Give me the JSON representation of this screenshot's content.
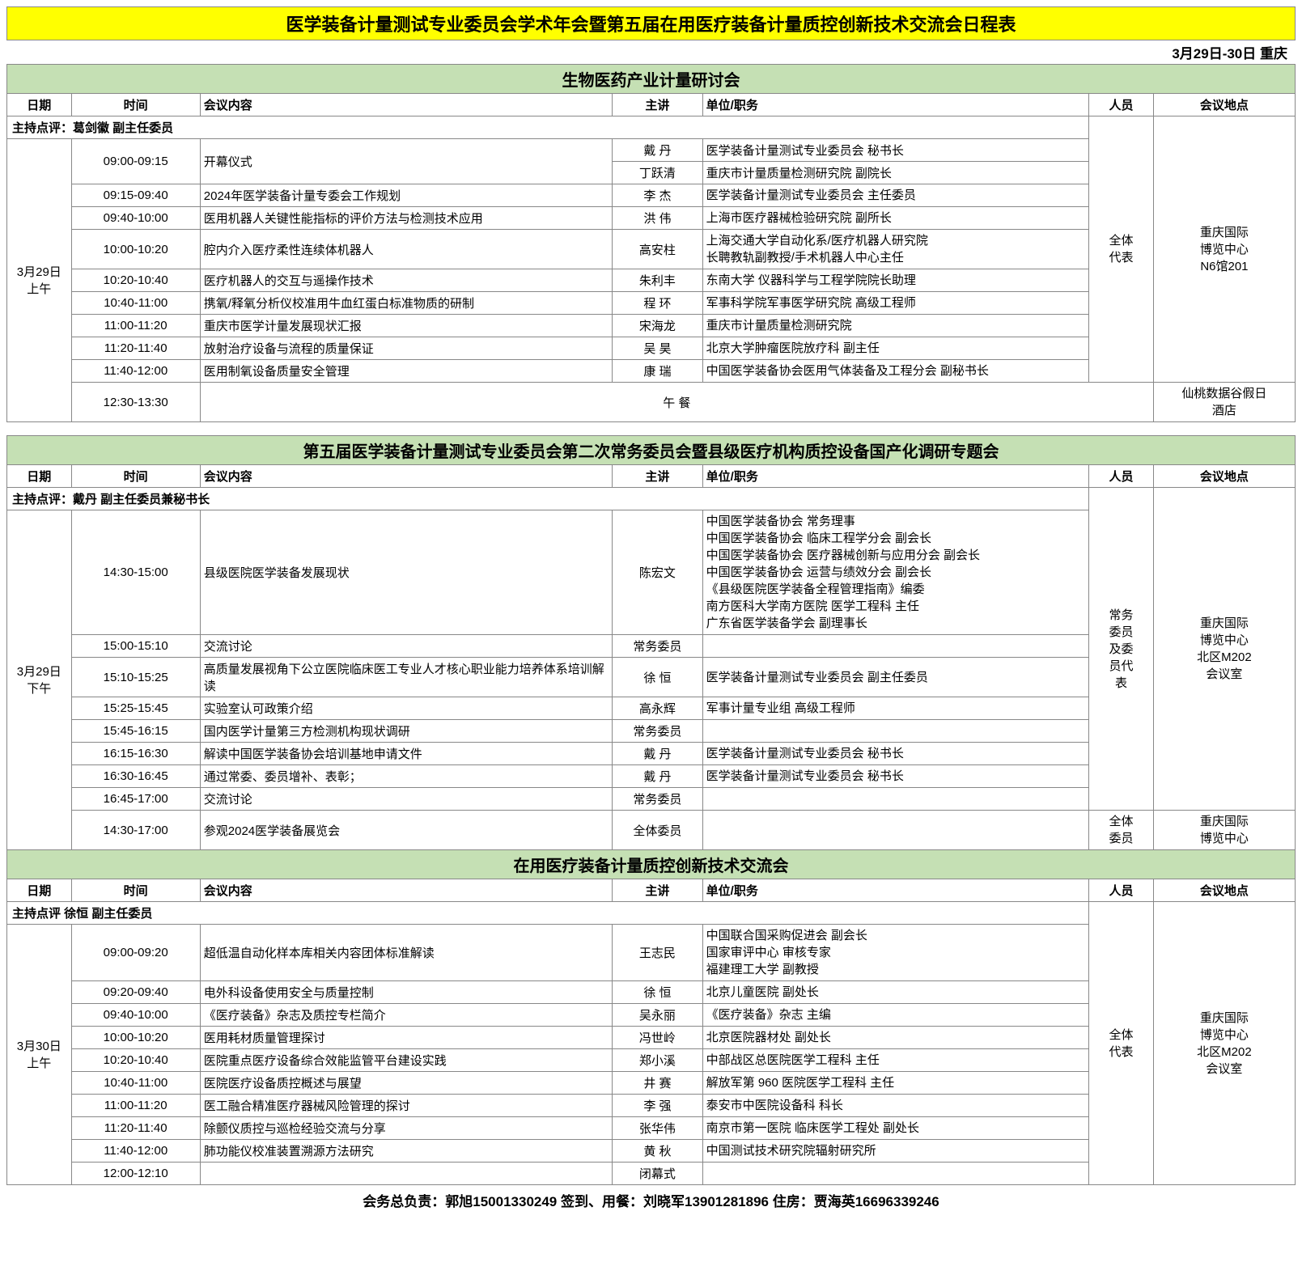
{
  "colors": {
    "title_bg": "#ffff00",
    "section_bg": "#c5e0b4",
    "border": "#888888",
    "text": "#000000",
    "bg": "#ffffff"
  },
  "typography": {
    "title_fontsize_pt": 17,
    "section_fontsize_pt": 15,
    "body_fontsize_pt": 11,
    "footer_fontsize_pt": 13
  },
  "main_title": "医学装备计量测试专业委员会学术年会暨第五届在用医疗装备计量质控创新技术交流会日程表",
  "date_location": "3月29日-30日  重庆",
  "headers": {
    "date": "日期",
    "time": "时间",
    "topic": "会议内容",
    "speaker": "主讲",
    "org": "单位/职务",
    "audience": "人员",
    "venue": "会议地点"
  },
  "block1": {
    "section": "生物医药产业计量研讨会",
    "host": "主持点评：葛剑徽  副主任委员",
    "date_label": "3月29日\n上午",
    "audience": "全体\n代表",
    "venue": "重庆国际\n博览中心\nN6馆201",
    "rows": [
      {
        "time": "09:00-09:15",
        "topic": "开幕仪式",
        "speaker": "戴  丹",
        "org": "医学装备计量测试专业委员会  秘书长",
        "opening": true
      },
      {
        "time": "",
        "topic": "",
        "speaker": "丁跃清",
        "org": "重庆市计量质量检测研究院  副院长"
      },
      {
        "time": "09:15-09:40",
        "topic": "2024年医学装备计量专委会工作规划",
        "speaker": "李  杰",
        "org": "医学装备计量测试专业委员会  主任委员"
      },
      {
        "time": "09:40-10:00",
        "topic": "医用机器人关键性能指标的评价方法与检测技术应用",
        "speaker": "洪  伟",
        "org": "上海市医疗器械检验研究院  副所长"
      },
      {
        "time": "10:00-10:20",
        "topic": "腔内介入医疗柔性连续体机器人",
        "speaker": "高安柱",
        "org": "上海交通大学自动化系/医疗机器人研究院\n长聘教轨副教授/手术机器人中心主任"
      },
      {
        "time": "10:20-10:40",
        "topic": "医疗机器人的交互与遥操作技术",
        "speaker": "朱利丰",
        "org": "东南大学  仪器科学与工程学院院长助理"
      },
      {
        "time": "10:40-11:00",
        "topic": "携氧/释氧分析仪校准用牛血红蛋白标准物质的研制",
        "speaker": "程  环",
        "org": "军事科学院军事医学研究院  高级工程师"
      },
      {
        "time": "11:00-11:20",
        "topic": "重庆市医学计量发展现状汇报",
        "speaker": "宋海龙",
        "org": "重庆市计量质量检测研究院"
      },
      {
        "time": "11:20-11:40",
        "topic": "放射治疗设备与流程的质量保证",
        "speaker": "吴  昊",
        "org": "北京大学肿瘤医院放疗科  副主任"
      },
      {
        "time": "11:40-12:00",
        "topic": "医用制氧设备质量安全管理",
        "speaker": "康  瑞",
        "org": "中国医学装备协会医用气体装备及工程分会  副秘书长"
      }
    ],
    "lunch": {
      "time": "12:30-13:30",
      "label": "午  餐",
      "venue": "仙桃数据谷假日\n酒店"
    }
  },
  "block2": {
    "section": "第五届医学装备计量测试专业委员会第二次常务委员会暨县级医疗机构质控设备国产化调研专题会",
    "host": "主持点评：戴丹  副主任委员兼秘书长",
    "date_label": "3月29日\n下午",
    "audience": "常务\n委员\n及委\n员代\n表",
    "venue": "重庆国际\n博览中心\n北区M202\n会议室",
    "rows": [
      {
        "time": "14:30-15:00",
        "topic": "县级医院医学装备发展现状",
        "speaker": "陈宏文",
        "org": "中国医学装备协会  常务理事\n中国医学装备协会  临床工程学分会  副会长\n中国医学装备协会  医疗器械创新与应用分会  副会长\n中国医学装备协会  运营与绩效分会  副会长\n《县级医院医学装备全程管理指南》编委\n南方医科大学南方医院  医学工程科  主任\n广东省医学装备学会  副理事长"
      },
      {
        "time": "15:00-15:10",
        "topic": "交流讨论",
        "speaker": "常务委员",
        "org": ""
      },
      {
        "time": "15:10-15:25",
        "topic": "高质量发展视角下公立医院临床医工专业人才核心职业能力培养体系培训解读",
        "speaker": "徐  恒",
        "org": "医学装备计量测试专业委员会  副主任委员"
      },
      {
        "time": "15:25-15:45",
        "topic": "实验室认可政策介绍",
        "speaker": "高永辉",
        "org": "军事计量专业组  高级工程师"
      },
      {
        "time": "15:45-16:15",
        "topic": "国内医学计量第三方检测机构现状调研",
        "speaker": "常务委员",
        "org": ""
      },
      {
        "time": "16:15-16:30",
        "topic": "解读中国医学装备协会培训基地申请文件",
        "speaker": "戴  丹",
        "org": "医学装备计量测试专业委员会    秘书长"
      },
      {
        "time": "16:30-16:45",
        "topic": "通过常委、委员增补、表彰；",
        "speaker": "戴  丹",
        "org": "医学装备计量测试专业委员会    秘书长"
      },
      {
        "time": "16:45-17:00",
        "topic": "交流讨论",
        "speaker": "常务委员",
        "org": ""
      }
    ],
    "extra": {
      "time": "14:30-17:00",
      "topic": "参观2024医学装备展览会",
      "speaker": "全体委员",
      "org": "",
      "audience": "全体\n委员",
      "venue": "重庆国际\n博览中心"
    }
  },
  "block3": {
    "section": "在用医疗装备计量质控创新技术交流会",
    "host": "主持点评  徐恒  副主任委员",
    "date_label": "3月30日\n上午",
    "audience": "全体\n代表",
    "venue": "重庆国际\n博览中心\n北区M202\n会议室",
    "rows": [
      {
        "time": "09:00-09:20",
        "topic": "超低温自动化样本库相关内容团体标准解读",
        "speaker": "王志民",
        "org": "中国联合国采购促进会  副会长\n国家审评中心  审核专家\n福建理工大学  副教授"
      },
      {
        "time": "09:20-09:40",
        "topic": "电外科设备使用安全与质量控制",
        "speaker": "徐  恒",
        "org": "北京儿童医院  副处长"
      },
      {
        "time": "09:40-10:00",
        "topic": "《医疗装备》杂志及质控专栏简介",
        "speaker": "吴永丽",
        "org": "《医疗装备》杂志  主编"
      },
      {
        "time": "10:00-10:20",
        "topic": "医用耗材质量管理探讨",
        "speaker": "冯世岭",
        "org": "北京医院器材处  副处长"
      },
      {
        "time": "10:20-10:40",
        "topic": "医院重点医疗设备综合效能监管平台建设实践",
        "speaker": "郑小溪",
        "org": "中部战区总医院医学工程科  主任"
      },
      {
        "time": "10:40-11:00",
        "topic": "医院医疗设备质控概述与展望",
        "speaker": "井  赛",
        "org": "解放军第 960 医院医学工程科  主任"
      },
      {
        "time": "11:00-11:20",
        "topic": "医工融合精准医疗器械风险管理的探讨",
        "speaker": "李  强",
        "org": "泰安市中医院设备科  科长"
      },
      {
        "time": "11:20-11:40",
        "topic": "除颤仪质控与巡检经验交流与分享",
        "speaker": "张华伟",
        "org": "南京市第一医院  临床医学工程处  副处长"
      },
      {
        "time": "11:40-12:00",
        "topic": "肺功能仪校准装置溯源方法研究",
        "speaker": "黄  秋",
        "org": "中国测试技术研究院辐射研究所"
      },
      {
        "time": "12:00-12:10",
        "topic": "",
        "speaker": "闭幕式",
        "org": ""
      }
    ]
  },
  "footer": "会务总负责：郭旭15001330249        签到、用餐：刘晓军13901281896        住房：贾海英16696339246"
}
